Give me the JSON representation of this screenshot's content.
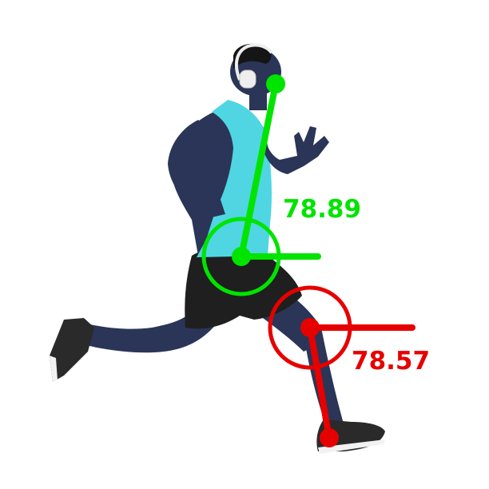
{
  "overlays": {
    "trunk": {
      "angle_label": "78.89",
      "color": "#00e400"
    },
    "shin": {
      "angle_label": "78.57",
      "color": "#e60000"
    }
  },
  "subject": {
    "skin_color": "#2b3558",
    "tank_top_color": "#4fd6e2",
    "shorts_color": "#1f1f1f",
    "shoe_color": "#2a2a2a",
    "headphones_color": "#eeeeee"
  }
}
